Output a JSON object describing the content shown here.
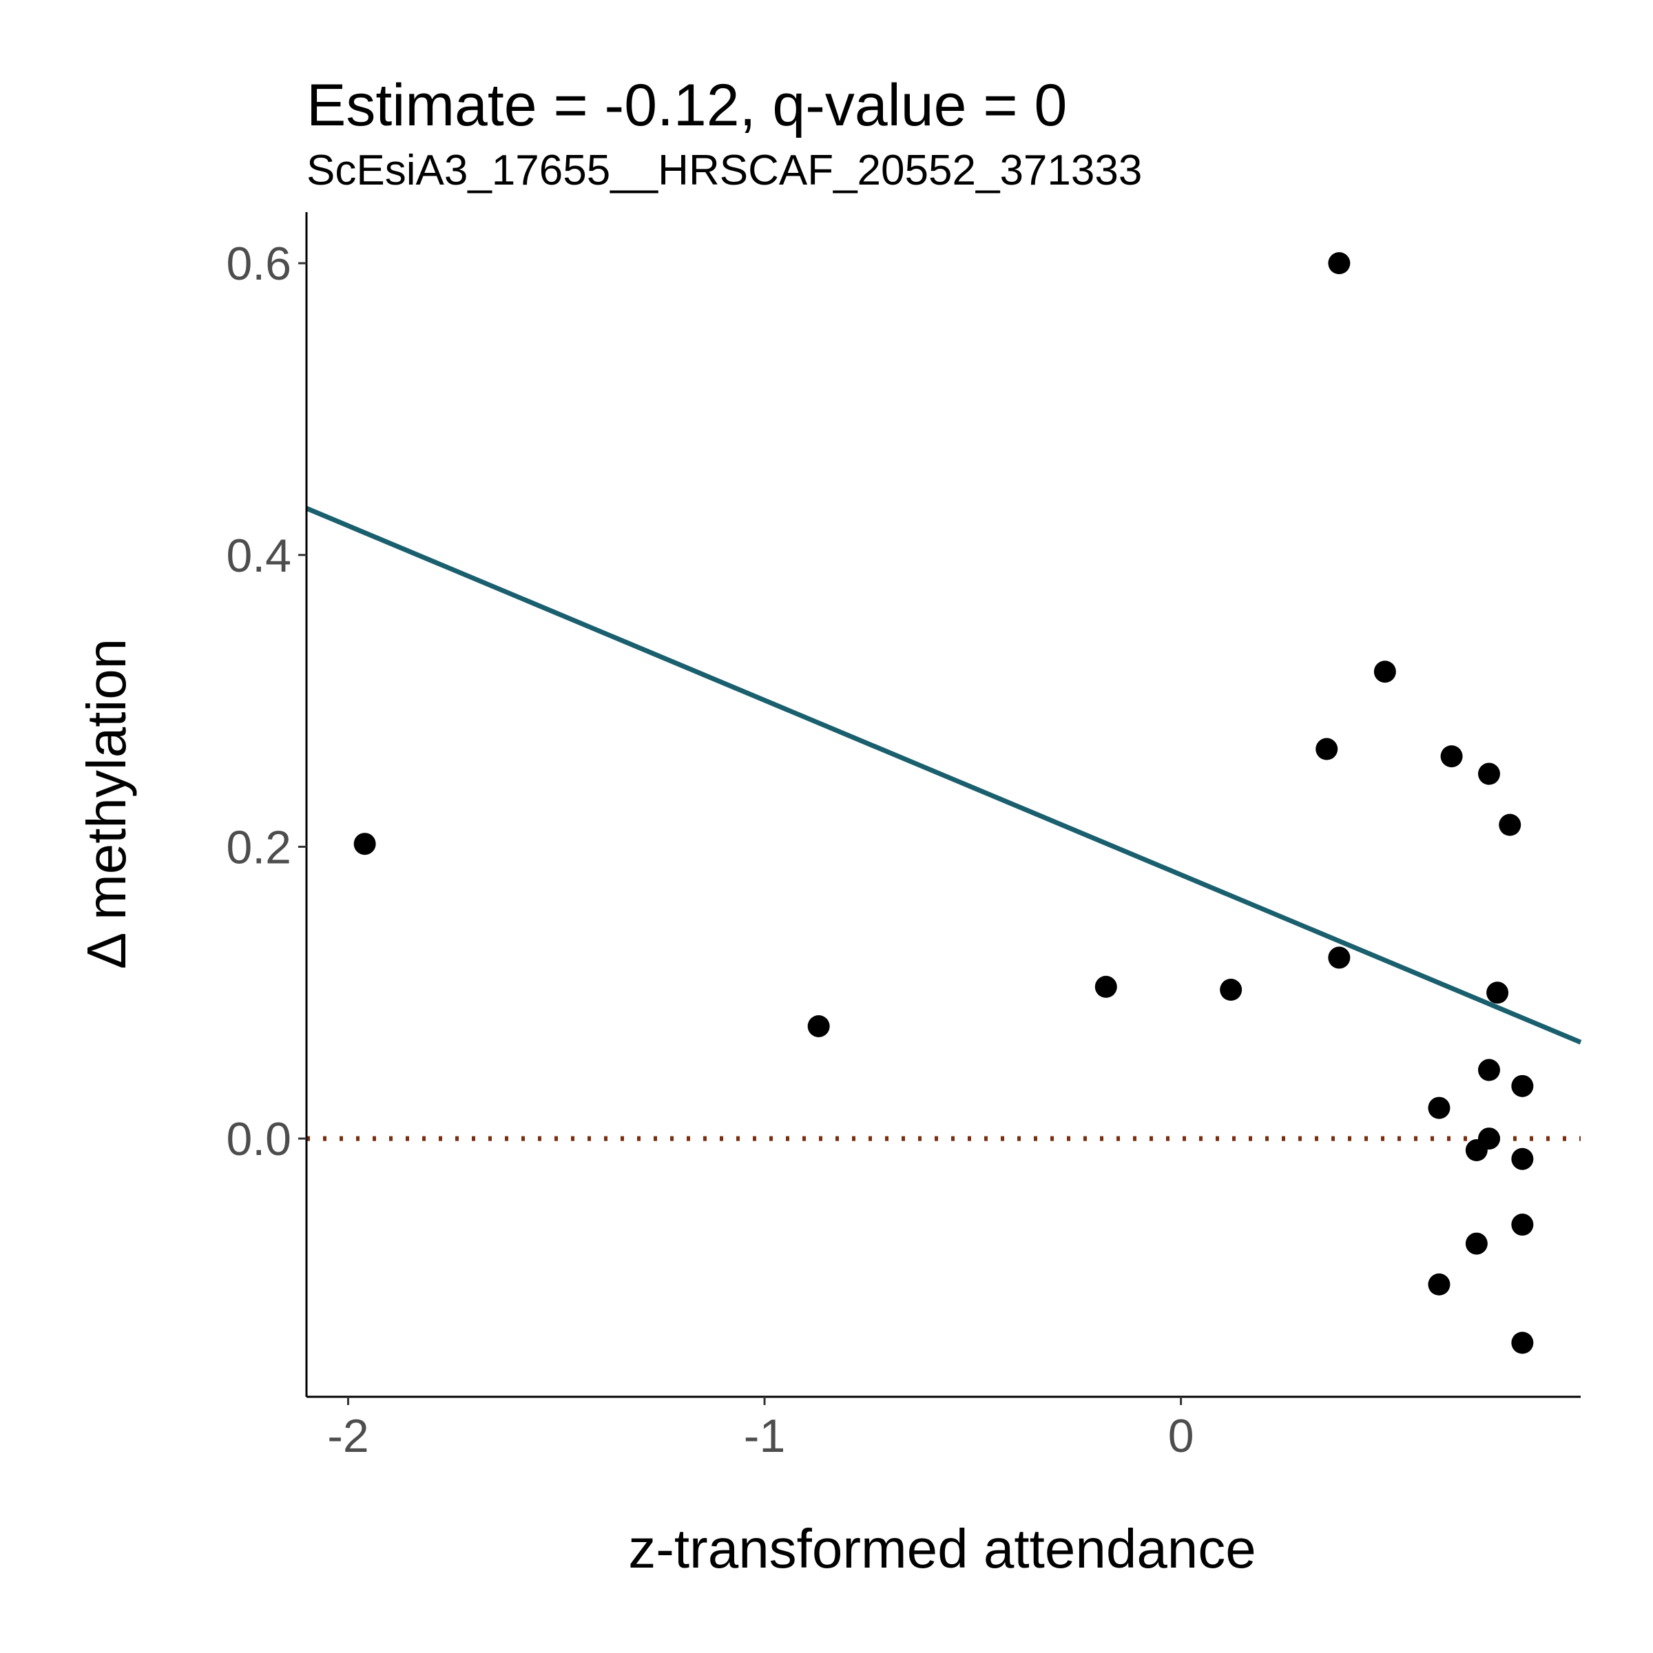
{
  "chart_data": {
    "type": "scatter",
    "title": "Estimate = -0.12, q-value = 0",
    "subtitle": "ScEsiA3_17655__HRSCAF_20552_371333",
    "xlabel": "z-transformed attendance",
    "ylabel": "Δ methylation",
    "xlim": [
      -2.1,
      0.96
    ],
    "ylim": [
      -0.177,
      0.635
    ],
    "x_ticks": [
      -2,
      -1,
      0
    ],
    "x_tick_labels": [
      "-2",
      "-1",
      "0"
    ],
    "y_ticks": [
      0.0,
      0.2,
      0.4,
      0.6
    ],
    "y_tick_labels": [
      "0.0",
      "0.2",
      "0.4",
      "0.6"
    ],
    "grid": false,
    "legend": "none",
    "points": [
      {
        "x": -1.96,
        "y": 0.202
      },
      {
        "x": -0.87,
        "y": 0.077
      },
      {
        "x": -0.18,
        "y": 0.104
      },
      {
        "x": 0.12,
        "y": 0.102
      },
      {
        "x": 0.35,
        "y": 0.267
      },
      {
        "x": 0.38,
        "y": 0.6
      },
      {
        "x": 0.38,
        "y": 0.124
      },
      {
        "x": 0.49,
        "y": 0.32
      },
      {
        "x": 0.62,
        "y": 0.021
      },
      {
        "x": 0.62,
        "y": -0.1
      },
      {
        "x": 0.65,
        "y": 0.262
      },
      {
        "x": 0.71,
        "y": -0.008
      },
      {
        "x": 0.71,
        "y": -0.072
      },
      {
        "x": 0.74,
        "y": 0.25
      },
      {
        "x": 0.74,
        "y": 0.047
      },
      {
        "x": 0.74,
        "y": 0.0
      },
      {
        "x": 0.76,
        "y": 0.1
      },
      {
        "x": 0.79,
        "y": 0.215
      },
      {
        "x": 0.82,
        "y": 0.036
      },
      {
        "x": 0.82,
        "y": -0.014
      },
      {
        "x": 0.82,
        "y": -0.059
      },
      {
        "x": 0.82,
        "y": -0.14
      }
    ],
    "fit_line": {
      "x": [
        -2.1,
        0.96
      ],
      "y": [
        0.432,
        0.066
      ],
      "color": "#1a5f6e"
    },
    "reference_line": {
      "y": 0.0,
      "style": "dotted",
      "color": "#7a2e10"
    },
    "point_color": "#000000"
  }
}
